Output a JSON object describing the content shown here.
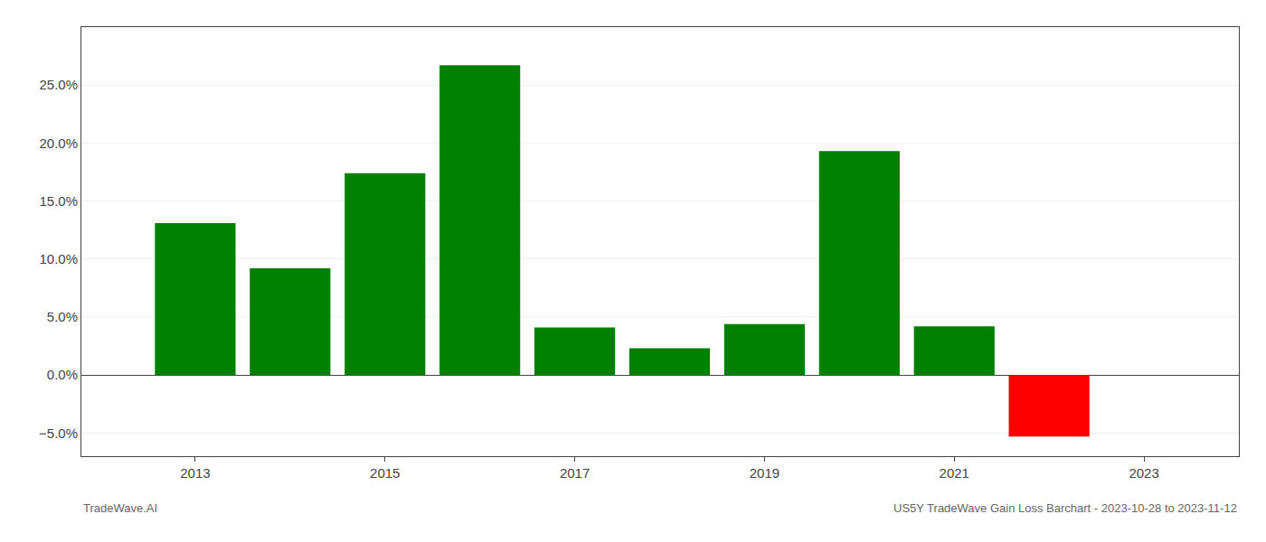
{
  "chart_data": {
    "type": "bar",
    "x": [
      2013,
      2014,
      2015,
      2016,
      2017,
      2018,
      2019,
      2020,
      2021,
      2022
    ],
    "values": [
      0.131,
      0.092,
      0.174,
      0.267,
      0.041,
      0.023,
      0.044,
      0.193,
      0.042,
      -0.053
    ],
    "colors": [
      "#008000",
      "#008000",
      "#008000",
      "#008000",
      "#008000",
      "#008000",
      "#008000",
      "#008000",
      "#008000",
      "#ff0000"
    ],
    "xlim": [
      2011.8,
      2024.0
    ],
    "xticks": [
      2013,
      2015,
      2017,
      2019,
      2021,
      2023
    ],
    "ylim": [
      -0.07,
      0.3
    ],
    "yticks": [
      {
        "value": -0.05,
        "label": "−5.0%"
      },
      {
        "value": 0.0,
        "label": "0.0%"
      },
      {
        "value": 0.05,
        "label": "5.0%"
      },
      {
        "value": 0.1,
        "label": "10.0%"
      },
      {
        "value": 0.15,
        "label": "15.0%"
      },
      {
        "value": 0.2,
        "label": "20.0%"
      },
      {
        "value": 0.25,
        "label": "25.0%"
      }
    ],
    "grid": true,
    "annotations": [
      "TradeWave.AI",
      "US5Y TradeWave Gain Loss Barchart - 2023-10-28 to 2023-11-12"
    ]
  }
}
